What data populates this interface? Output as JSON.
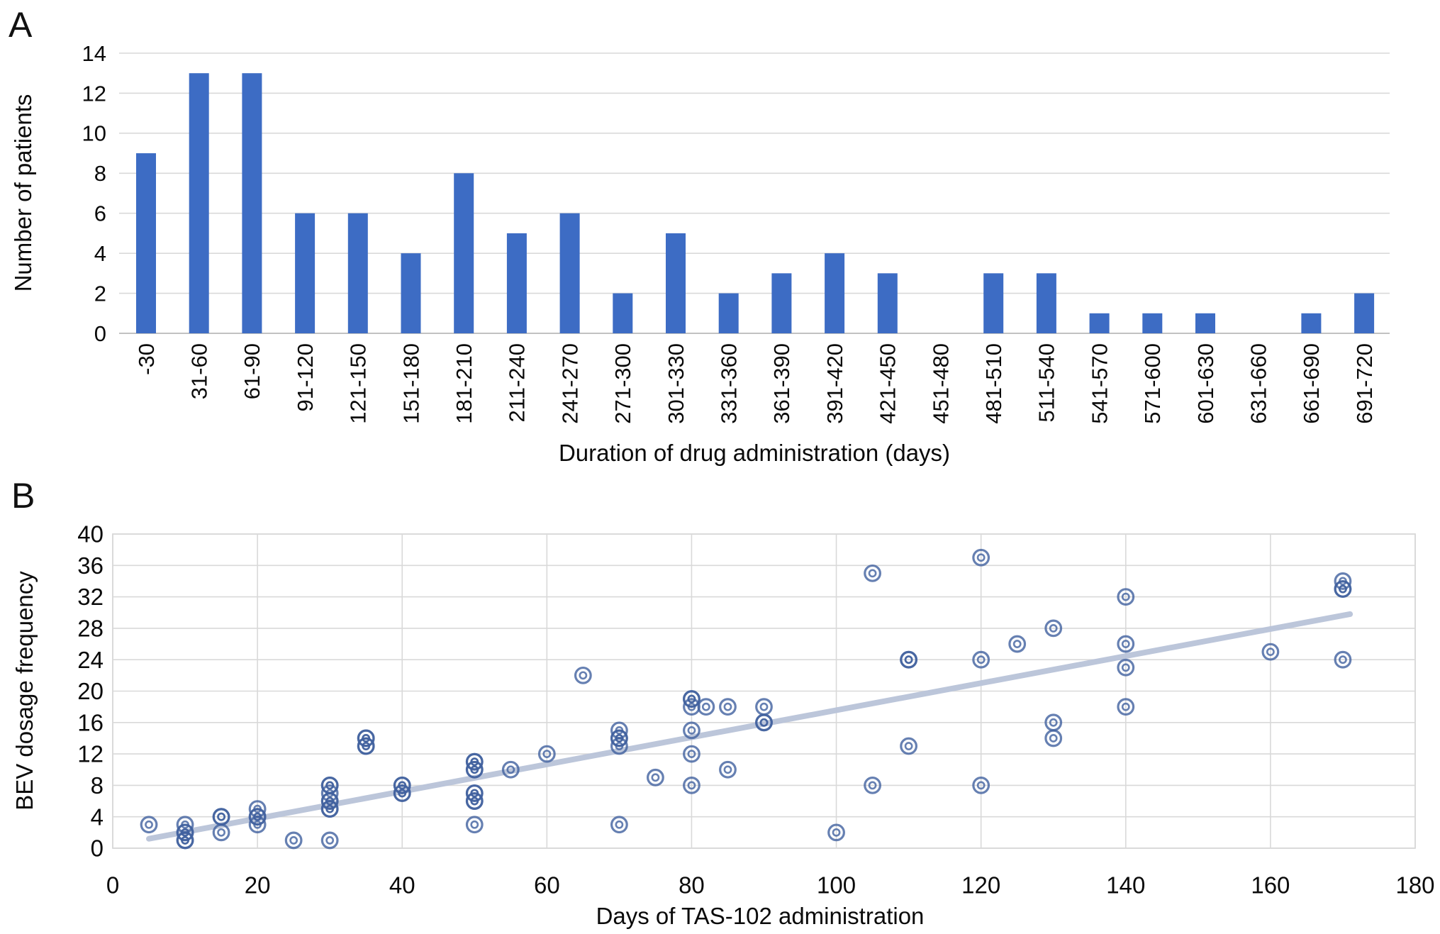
{
  "panels": {
    "a": {
      "label": "A",
      "y_title": "Number of patients",
      "x_title": "Duration of drug administration (days)"
    },
    "b": {
      "label": "B",
      "y_title": "BEV dosage frequency",
      "x_title": "Days of TAS-102 administration"
    }
  },
  "colors": {
    "bar": "#3d6cc4",
    "grid": "#d9d9d9",
    "axis_line": "#c2c2c2",
    "marker": "#41619f",
    "trend": "#b9c3d9",
    "text": "#0a0a0a"
  },
  "chart_data": [
    {
      "type": "bar",
      "title": "",
      "categories": [
        "-30",
        "31-60",
        "61-90",
        "91-120",
        "121-150",
        "151-180",
        "181-210",
        "211-240",
        "241-270",
        "271-300",
        "301-330",
        "331-360",
        "361-390",
        "391-420",
        "421-450",
        "451-480",
        "481-510",
        "511-540",
        "541-570",
        "571-600",
        "601-630",
        "631-660",
        "661-690",
        "691-720"
      ],
      "values": [
        9,
        13,
        13,
        6,
        6,
        4,
        8,
        5,
        6,
        2,
        5,
        2,
        3,
        4,
        3,
        0,
        3,
        3,
        1,
        1,
        1,
        0,
        1,
        2
      ],
      "xlabel": "Duration of drug administration (days)",
      "ylabel": "Number of patients",
      "ylim": [
        0,
        14
      ],
      "y_ticks": [
        0,
        2,
        4,
        6,
        8,
        10,
        12,
        14
      ],
      "grid": "horizontal",
      "legend": "none"
    },
    {
      "type": "scatter",
      "title": "",
      "xlabel": "Days of TAS-102 administration",
      "ylabel": "BEV dosage frequency",
      "xlim": [
        0,
        180
      ],
      "ylim": [
        0,
        40
      ],
      "x_ticks": [
        0,
        20,
        40,
        60,
        80,
        100,
        120,
        140,
        160,
        180
      ],
      "y_ticks": [
        0,
        4,
        8,
        12,
        16,
        20,
        24,
        28,
        32,
        36,
        40
      ],
      "grid": "both",
      "legend": "none",
      "points": [
        [
          5,
          3
        ],
        [
          10,
          1
        ],
        [
          10,
          1
        ],
        [
          10,
          2
        ],
        [
          10,
          2
        ],
        [
          10,
          3
        ],
        [
          15,
          2
        ],
        [
          15,
          4
        ],
        [
          15,
          4
        ],
        [
          20,
          3
        ],
        [
          20,
          4
        ],
        [
          20,
          4
        ],
        [
          20,
          5
        ],
        [
          25,
          1
        ],
        [
          30,
          1
        ],
        [
          30,
          5
        ],
        [
          30,
          5
        ],
        [
          30,
          6
        ],
        [
          30,
          6
        ],
        [
          30,
          7
        ],
        [
          30,
          8
        ],
        [
          30,
          8
        ],
        [
          35,
          13
        ],
        [
          35,
          13
        ],
        [
          35,
          14
        ],
        [
          35,
          14
        ],
        [
          40,
          7
        ],
        [
          40,
          7
        ],
        [
          40,
          8
        ],
        [
          40,
          8
        ],
        [
          50,
          3
        ],
        [
          50,
          6
        ],
        [
          50,
          6
        ],
        [
          50,
          7
        ],
        [
          50,
          7
        ],
        [
          50,
          10
        ],
        [
          50,
          10
        ],
        [
          50,
          11
        ],
        [
          50,
          11
        ],
        [
          55,
          10
        ],
        [
          60,
          12
        ],
        [
          65,
          22
        ],
        [
          70,
          3
        ],
        [
          70,
          13
        ],
        [
          70,
          14
        ],
        [
          70,
          14
        ],
        [
          70,
          15
        ],
        [
          75,
          9
        ],
        [
          80,
          8
        ],
        [
          80,
          12
        ],
        [
          80,
          15
        ],
        [
          80,
          18
        ],
        [
          80,
          19
        ],
        [
          80,
          19
        ],
        [
          82,
          18
        ],
        [
          85,
          10
        ],
        [
          85,
          18
        ],
        [
          90,
          16
        ],
        [
          90,
          16
        ],
        [
          90,
          18
        ],
        [
          100,
          2
        ],
        [
          105,
          8
        ],
        [
          105,
          35
        ],
        [
          110,
          13
        ],
        [
          110,
          24
        ],
        [
          110,
          24
        ],
        [
          120,
          8
        ],
        [
          120,
          24
        ],
        [
          120,
          37
        ],
        [
          125,
          26
        ],
        [
          130,
          14
        ],
        [
          130,
          16
        ],
        [
          130,
          28
        ],
        [
          140,
          18
        ],
        [
          140,
          23
        ],
        [
          140,
          26
        ],
        [
          140,
          32
        ],
        [
          160,
          25
        ],
        [
          170,
          24
        ],
        [
          170,
          33
        ],
        [
          170,
          33
        ],
        [
          170,
          34
        ]
      ],
      "trendline": {
        "x1": 5,
        "y1": 1.2,
        "x2": 171,
        "y2": 29.8
      }
    }
  ]
}
